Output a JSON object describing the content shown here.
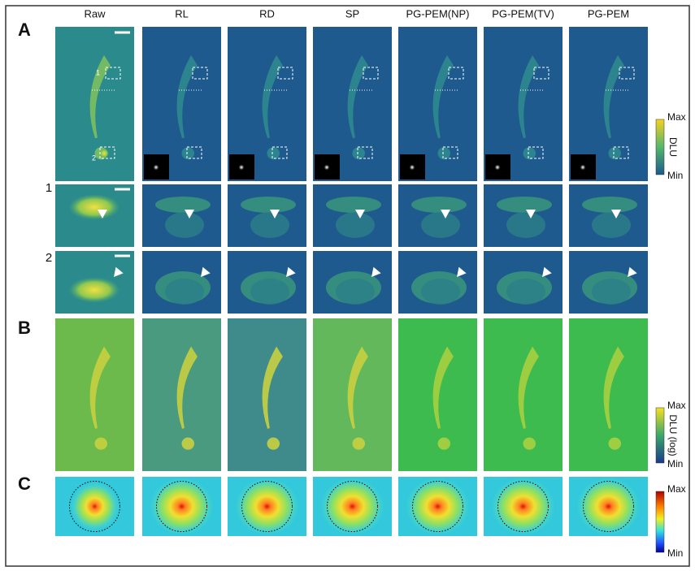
{
  "columns": [
    "Raw",
    "RL",
    "RD",
    "SP",
    "PG-PEM(NP)",
    "PG-PEM(TV)",
    "PG-PEM"
  ],
  "panel_labels": [
    "A",
    "B",
    "C"
  ],
  "zoom_labels": [
    "1",
    "2"
  ],
  "roi_labels": [
    "1",
    "2"
  ],
  "colorbars": [
    {
      "max": "Max",
      "min": "Min",
      "unit": "DLU"
    },
    {
      "max": "Max",
      "min": "Min",
      "unit": "DLU (log)"
    },
    {
      "max": "Max",
      "min": "Min"
    }
  ]
}
